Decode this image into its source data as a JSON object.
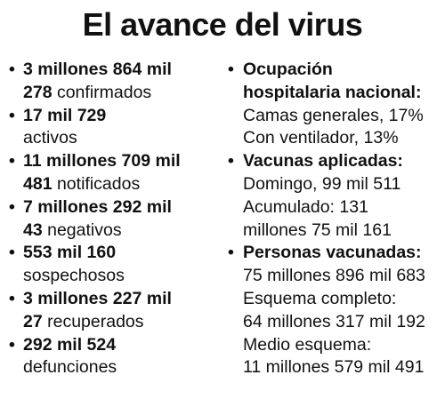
{
  "title": "El avance del virus",
  "bullet": "•",
  "left": {
    "items": [
      {
        "l1": "3 millones 864 mil",
        "l2_bold": "278",
        "l2_rest": " confirmados"
      },
      {
        "l1": "17 mil 729",
        "l2_bold": "",
        "l2_rest": "activos"
      },
      {
        "l1": "11 millones 709 mil",
        "l2_bold": "481",
        "l2_rest": " notificados"
      },
      {
        "l1": "7 millones 292 mil",
        "l2_bold": "43",
        "l2_rest": " negativos"
      },
      {
        "l1": "553 mil 160",
        "l2_bold": "",
        "l2_rest": "sospechosos"
      },
      {
        "l1": "3 millones 227 mil",
        "l2_bold": "27",
        "l2_rest": " recuperados"
      },
      {
        "l1": "292 mil 524",
        "l2_bold": "",
        "l2_rest": "defunciones"
      }
    ]
  },
  "right": {
    "hospital": {
      "heading_1": "Ocupación",
      "heading_2": "hospitalaria nacional:",
      "lines": [
        "Camas generales, 17%",
        "Con ventilador, 13%"
      ]
    },
    "vacunas": {
      "heading": "Vacunas aplicadas:",
      "lines": [
        "Domingo, 99 mil 511",
        "Acumulado: 131",
        "millones 75 mil 161"
      ]
    },
    "personas": {
      "heading": "Personas vacunadas:",
      "lines": [
        "75 millones 896 mil 683",
        "Esquema completo:",
        "64 millones 317 mil 192",
        "Medio esquema:",
        "11 millones 579 mil 491"
      ]
    }
  }
}
